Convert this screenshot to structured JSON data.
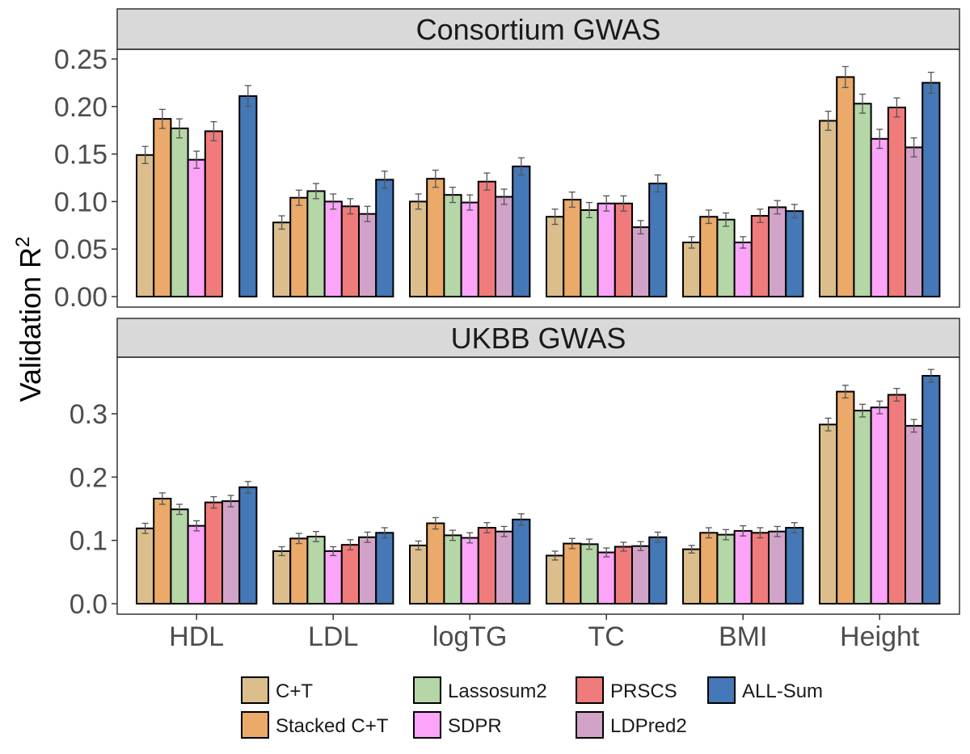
{
  "chart_data": {
    "type": "bar",
    "ylabel": "Validation R",
    "ylabel_superscript": "2",
    "categories": [
      "HDL",
      "LDL",
      "logTG",
      "TC",
      "BMI",
      "Height"
    ],
    "methods": [
      {
        "name": "C+T",
        "color": "#DBBE8B"
      },
      {
        "name": "Stacked C+T",
        "color": "#EBA96A"
      },
      {
        "name": "Lassosum2",
        "color": "#B5D6A6"
      },
      {
        "name": "SDPR",
        "color": "#FBA4F8"
      },
      {
        "name": "PRSCS",
        "color": "#EF7B7B"
      },
      {
        "name": "LDPred2",
        "color": "#D2A3C8"
      },
      {
        "name": "ALL-Sum",
        "color": "#4478B7"
      }
    ],
    "panels": [
      {
        "title": "Consortium GWAS",
        "ylim": [
          0,
          0.26
        ],
        "yticks": [
          0.0,
          0.05,
          0.1,
          0.15,
          0.2,
          0.25
        ],
        "tick_labels": [
          "0.00",
          "0.05",
          "0.10",
          "0.15",
          "0.20",
          "0.25"
        ],
        "values": [
          [
            0.149,
            0.187,
            0.177,
            0.144,
            0.174,
            null,
            0.211
          ],
          [
            0.078,
            0.104,
            0.111,
            0.1,
            0.095,
            0.087,
            0.123
          ],
          [
            0.1,
            0.124,
            0.107,
            0.099,
            0.121,
            0.105,
            0.137
          ],
          [
            0.084,
            0.102,
            0.091,
            0.098,
            0.098,
            0.073,
            0.119
          ],
          [
            0.057,
            0.084,
            0.081,
            0.057,
            0.085,
            0.094,
            0.09
          ],
          [
            0.185,
            0.231,
            0.203,
            0.166,
            0.199,
            0.157,
            0.225
          ]
        ],
        "errors": [
          [
            0.009,
            0.01,
            0.01,
            0.009,
            0.01,
            null,
            0.011
          ],
          [
            0.007,
            0.008,
            0.008,
            0.008,
            0.008,
            0.008,
            0.009
          ],
          [
            0.008,
            0.009,
            0.008,
            0.008,
            0.009,
            0.008,
            0.009
          ],
          [
            0.008,
            0.008,
            0.008,
            0.008,
            0.008,
            0.007,
            0.009
          ],
          [
            0.006,
            0.007,
            0.007,
            0.006,
            0.007,
            0.007,
            0.007
          ],
          [
            0.01,
            0.011,
            0.01,
            0.01,
            0.01,
            0.01,
            0.011
          ]
        ]
      },
      {
        "title": "UKBB GWAS",
        "ylim": [
          -0.018,
          0.385
        ],
        "yticks": [
          0.0,
          0.1,
          0.2,
          0.3
        ],
        "tick_labels": [
          "0.0",
          "0.1",
          "0.2",
          "0.3"
        ],
        "values": [
          [
            0.119,
            0.166,
            0.149,
            0.123,
            0.16,
            0.162,
            0.184
          ],
          [
            0.083,
            0.103,
            0.106,
            0.083,
            0.093,
            0.105,
            0.112
          ],
          [
            0.092,
            0.127,
            0.108,
            0.104,
            0.12,
            0.114,
            0.133
          ],
          [
            0.076,
            0.095,
            0.094,
            0.081,
            0.09,
            0.091,
            0.105
          ],
          [
            0.086,
            0.112,
            0.109,
            0.115,
            0.112,
            0.114,
            0.12
          ],
          [
            0.283,
            0.335,
            0.305,
            0.31,
            0.33,
            0.281,
            0.36
          ]
        ],
        "errors": [
          [
            0.008,
            0.009,
            0.008,
            0.008,
            0.009,
            0.009,
            0.009
          ],
          [
            0.007,
            0.008,
            0.008,
            0.007,
            0.008,
            0.008,
            0.008
          ],
          [
            0.007,
            0.009,
            0.008,
            0.008,
            0.008,
            0.008,
            0.009
          ],
          [
            0.007,
            0.008,
            0.008,
            0.007,
            0.007,
            0.007,
            0.008
          ],
          [
            0.006,
            0.008,
            0.008,
            0.008,
            0.008,
            0.008,
            0.008
          ],
          [
            0.01,
            0.01,
            0.01,
            0.01,
            0.01,
            0.01,
            0.01
          ]
        ]
      }
    ],
    "legend": {
      "position": "bottom",
      "labels": [
        "C+T",
        "Stacked C+T",
        "Lassosum2",
        "SDPR",
        "PRSCS",
        "LDPred2",
        "ALL-Sum"
      ]
    }
  }
}
